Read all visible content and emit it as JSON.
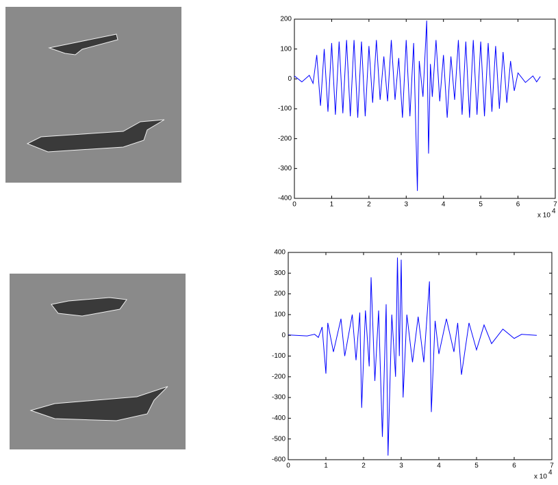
{
  "chart_data": [
    {
      "type": "line",
      "color": "#0000ff",
      "xlim": [
        0,
        7
      ],
      "xticks": [
        0,
        1,
        2,
        3,
        4,
        5,
        6,
        7
      ],
      "ylim": [
        -400,
        200
      ],
      "yticks": [
        200,
        100,
        0,
        -100,
        -200,
        -300,
        -400
      ],
      "x_multiplier": "x 10",
      "x_exponent": "4",
      "x": [
        0,
        0.2,
        0.4,
        0.5,
        0.6,
        0.7,
        0.8,
        0.9,
        1.0,
        1.1,
        1.2,
        1.3,
        1.4,
        1.5,
        1.6,
        1.7,
        1.8,
        1.9,
        2.0,
        2.1,
        2.2,
        2.3,
        2.4,
        2.5,
        2.6,
        2.7,
        2.8,
        2.9,
        3.0,
        3.1,
        3.2,
        3.3,
        3.35,
        3.45,
        3.55,
        3.6,
        3.65,
        3.7,
        3.8,
        3.9,
        4.0,
        4.1,
        4.2,
        4.3,
        4.4,
        4.5,
        4.6,
        4.7,
        4.8,
        4.9,
        5.0,
        5.1,
        5.2,
        5.3,
        5.4,
        5.5,
        5.6,
        5.7,
        5.8,
        5.9,
        6.0,
        6.2,
        6.4,
        6.5,
        6.6
      ],
      "values": [
        10,
        -10,
        12,
        -15,
        80,
        -90,
        100,
        -110,
        120,
        -120,
        125,
        -115,
        130,
        -125,
        130,
        -130,
        125,
        -125,
        110,
        -80,
        130,
        -70,
        75,
        -75,
        130,
        -70,
        70,
        -130,
        130,
        -125,
        120,
        -375,
        60,
        -60,
        195,
        -250,
        50,
        -60,
        130,
        -75,
        80,
        -130,
        75,
        -70,
        130,
        -120,
        125,
        -130,
        130,
        -120,
        125,
        -125,
        120,
        -110,
        110,
        -100,
        90,
        -80,
        60,
        -40,
        20,
        -12,
        10,
        -10,
        8
      ]
    },
    {
      "type": "line",
      "color": "#0000ff",
      "xlim": [
        0,
        7
      ],
      "xticks": [
        0,
        1,
        2,
        3,
        4,
        5,
        6,
        7
      ],
      "ylim": [
        -600,
        400
      ],
      "yticks": [
        400,
        300,
        200,
        100,
        0,
        -100,
        -200,
        -300,
        -400,
        -500,
        -600
      ],
      "x_multiplier": "x 10",
      "x_exponent": "4",
      "x": [
        0,
        0.5,
        0.7,
        0.8,
        0.9,
        1.0,
        1.05,
        1.2,
        1.4,
        1.5,
        1.7,
        1.8,
        1.9,
        1.95,
        2.05,
        2.15,
        2.2,
        2.3,
        2.4,
        2.5,
        2.6,
        2.65,
        2.75,
        2.85,
        2.9,
        2.95,
        3.0,
        3.05,
        3.15,
        3.3,
        3.45,
        3.6,
        3.75,
        3.8,
        3.9,
        4.0,
        4.2,
        4.4,
        4.5,
        4.6,
        4.8,
        5.0,
        5.2,
        5.4,
        5.7,
        6.0,
        6.2,
        6.6
      ],
      "values": [
        2,
        -3,
        5,
        -10,
        40,
        -185,
        60,
        -80,
        80,
        -100,
        100,
        -120,
        110,
        -350,
        120,
        -150,
        280,
        -220,
        120,
        -490,
        150,
        -580,
        100,
        -200,
        375,
        -100,
        365,
        -300,
        100,
        -130,
        90,
        -130,
        260,
        -370,
        70,
        -90,
        80,
        -80,
        60,
        -190,
        60,
        -70,
        50,
        -40,
        30,
        -15,
        5,
        0
      ]
    }
  ]
}
